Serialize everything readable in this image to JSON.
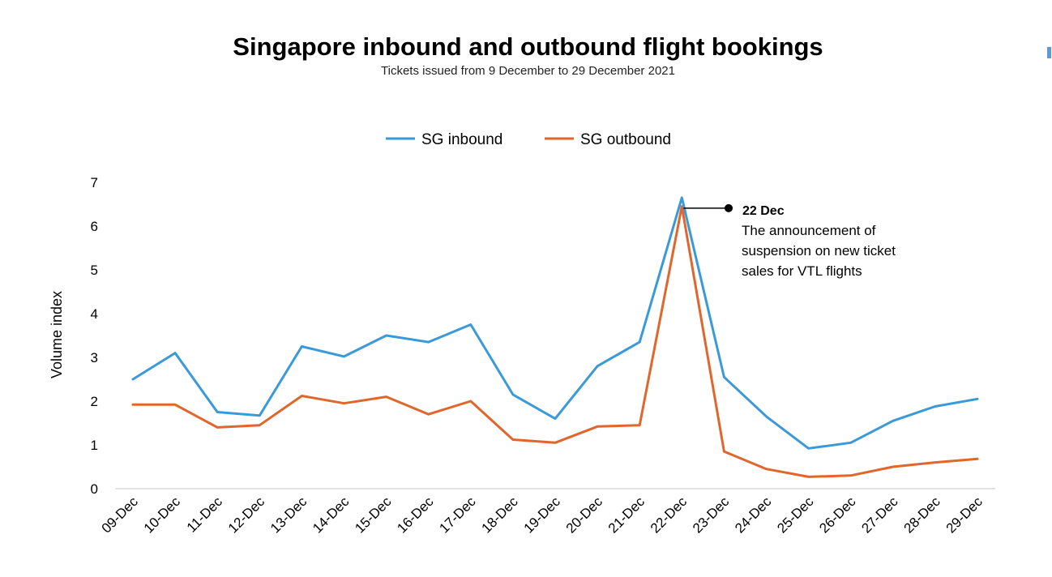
{
  "chart_data": {
    "type": "line",
    "title": "Singapore inbound and outbound flight bookings",
    "subtitle": "Tickets issued from 9 December to 29 December 2021",
    "ylabel": "Volume index",
    "xlabel": "",
    "ylim": [
      0,
      7
    ],
    "yticks": [
      "0",
      "1",
      "2",
      "3",
      "4",
      "5",
      "6",
      "7"
    ],
    "grid": false,
    "legend_position": "top-center",
    "categories": [
      "09-Dec",
      "10-Dec",
      "11-Dec",
      "12-Dec",
      "13-Dec",
      "14-Dec",
      "15-Dec",
      "16-Dec",
      "17-Dec",
      "18-Dec",
      "19-Dec",
      "20-Dec",
      "21-Dec",
      "22-Dec",
      "23-Dec",
      "24-Dec",
      "25-Dec",
      "26-Dec",
      "27-Dec",
      "28-Dec",
      "29-Dec"
    ],
    "series": [
      {
        "name": "SG inbound",
        "color": "#3a9ad9",
        "values": [
          2.5,
          3.1,
          1.75,
          1.67,
          3.25,
          3.02,
          3.5,
          3.35,
          3.75,
          2.15,
          1.6,
          2.8,
          3.35,
          6.65,
          2.55,
          1.65,
          0.92,
          1.05,
          1.55,
          1.88,
          2.05
        ]
      },
      {
        "name": "SG outbound",
        "color": "#e0662b",
        "values": [
          1.92,
          1.92,
          1.4,
          1.45,
          2.12,
          1.95,
          2.1,
          1.7,
          2.0,
          1.12,
          1.05,
          1.42,
          1.45,
          6.45,
          0.85,
          0.45,
          0.27,
          0.3,
          0.5,
          0.6,
          0.68
        ]
      }
    ],
    "annotation": {
      "category": "22-Dec",
      "title": "22 Dec",
      "lines": [
        "The announcement of",
        "suspension on new ticket",
        "sales for VTL flights"
      ]
    }
  },
  "colors": {
    "inbound": "#3a9ad9",
    "outbound": "#e0662b",
    "axis": "#d9d9d9",
    "accent_mark": "#5b9bd5"
  }
}
